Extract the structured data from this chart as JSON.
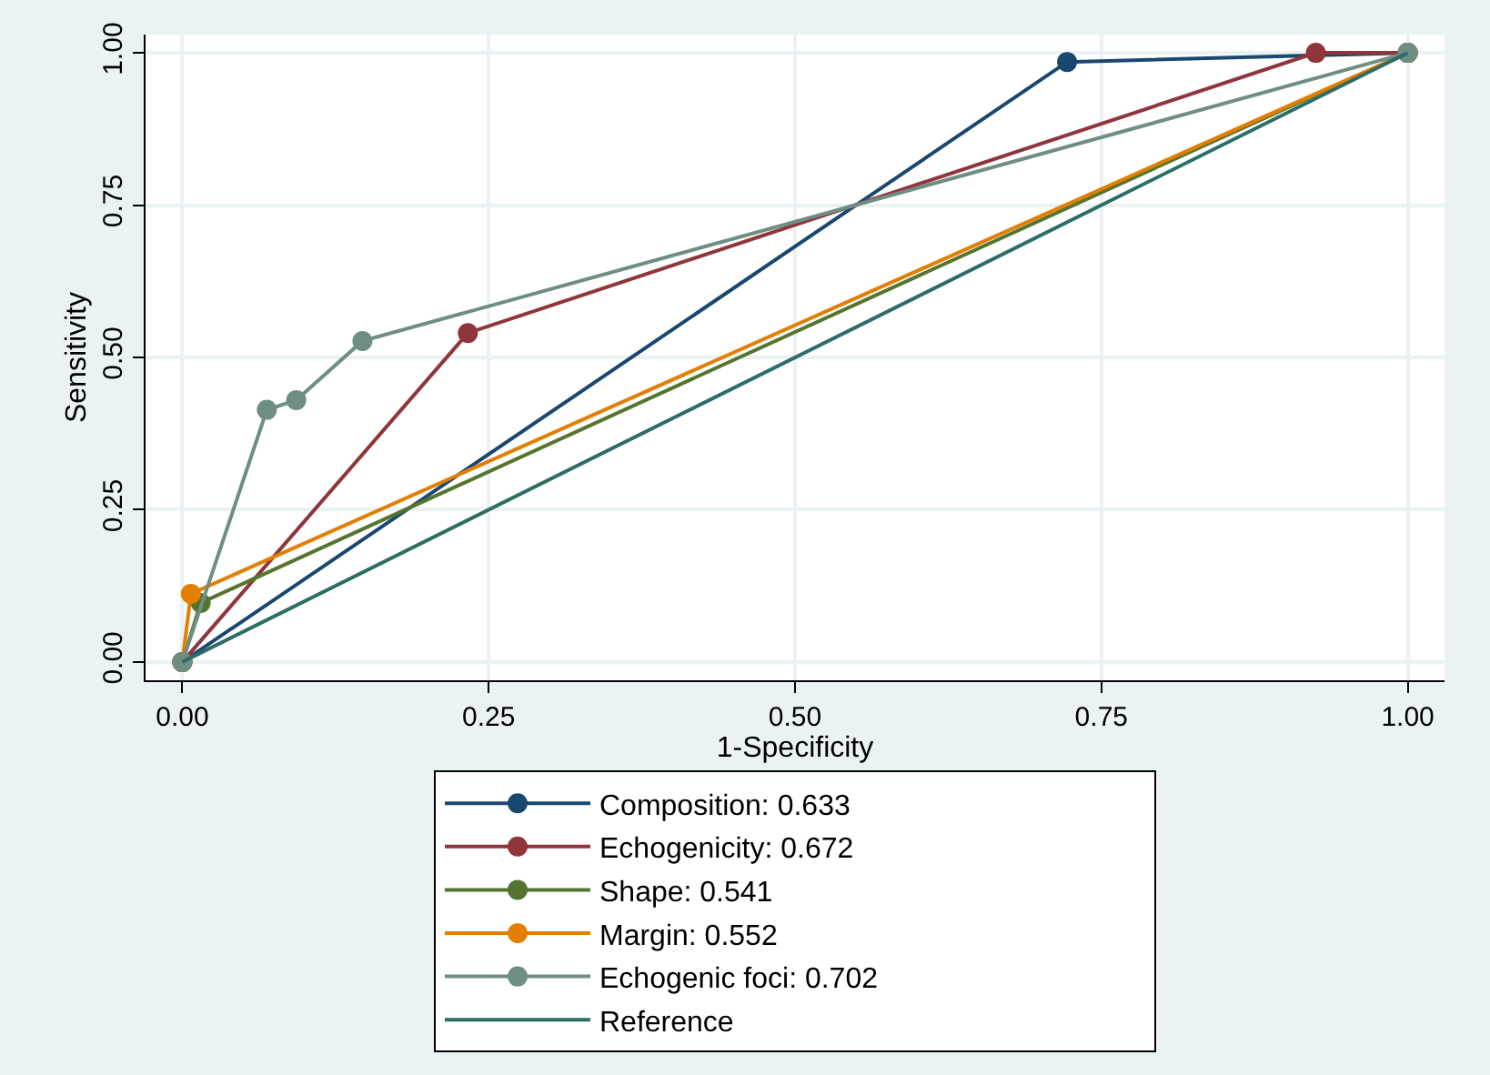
{
  "chart_data": {
    "type": "line",
    "xlabel": "1-Specificity",
    "ylabel": "Sensitivity",
    "xlim": [
      -0.03,
      1.03
    ],
    "ylim": [
      -0.03,
      1.03
    ],
    "xticks": [
      {
        "value": 0,
        "label": "0.00"
      },
      {
        "value": 0.25,
        "label": "0.25"
      },
      {
        "value": 0.5,
        "label": "0.50"
      },
      {
        "value": 0.75,
        "label": "0.75"
      },
      {
        "value": 1,
        "label": "1.00"
      }
    ],
    "yticks": [
      {
        "value": 0,
        "label": "0.00"
      },
      {
        "value": 0.25,
        "label": "0.25"
      },
      {
        "value": 0.5,
        "label": "0.50"
      },
      {
        "value": 0.75,
        "label": "0.75"
      },
      {
        "value": 1,
        "label": "1.00"
      }
    ],
    "grid": true,
    "legend": "bottom",
    "marker": "circle",
    "line_style": "solid",
    "series": [
      {
        "name": "Composition: 0.633",
        "color": "#1a476f",
        "x": [
          0,
          0.722,
          1
        ],
        "values": [
          0,
          0.985,
          1
        ]
      },
      {
        "name": "Echogenicity: 0.672",
        "color": "#90353b",
        "x": [
          0,
          0.233,
          0.925,
          1
        ],
        "values": [
          0,
          0.54,
          1,
          1
        ]
      },
      {
        "name": "Shape: 0.541",
        "color": "#55752f",
        "x": [
          0,
          0.015,
          1
        ],
        "values": [
          0,
          0.097,
          1
        ]
      },
      {
        "name": "Margin: 0.552",
        "color": "#e37e00",
        "x": [
          0,
          0.007,
          1
        ],
        "values": [
          0,
          0.112,
          1
        ]
      },
      {
        "name": "Echogenic foci: 0.702",
        "color": "#6e8e84",
        "x": [
          0,
          0.069,
          0.093,
          0.147,
          1
        ],
        "values": [
          0,
          0.414,
          0.43,
          0.527,
          1
        ]
      },
      {
        "name": "Reference",
        "color": "#2d6d66",
        "x": [
          0,
          1
        ],
        "values": [
          0,
          1
        ],
        "marker": "none"
      }
    ]
  }
}
